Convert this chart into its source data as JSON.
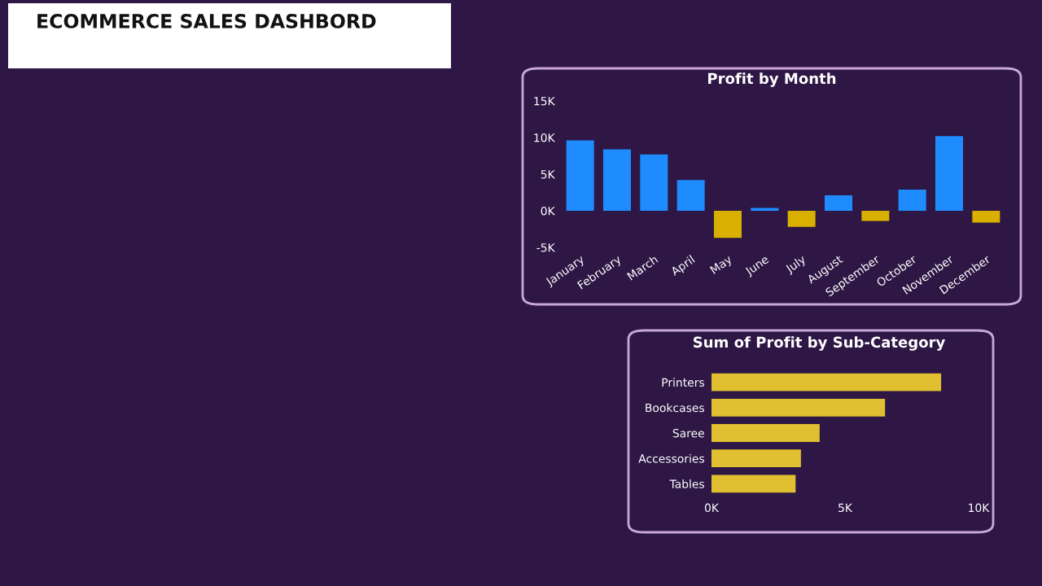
{
  "chart_data": [
    {
      "type": "other",
      "title": "ECOMMERCE SALES DASHBORD"
    },
    {
      "type": "bar",
      "title": "Profit by Month",
      "categories": [
        "January",
        "February",
        "March",
        "April",
        "May",
        "June",
        "July",
        "August",
        "September",
        "October",
        "November",
        "December"
      ],
      "values": [
        9600,
        8400,
        7700,
        4200,
        -3700,
        400,
        -2200,
        2100,
        -1400,
        2900,
        10200,
        -1600
      ],
      "colors": [
        "#1e8cff",
        "#1e8cff",
        "#1e8cff",
        "#1e8cff",
        "#d9b000",
        "#1e8cff",
        "#d9b000",
        "#1e8cff",
        "#d9b000",
        "#1e8cff",
        "#1e8cff",
        "#d9b000"
      ],
      "ylim": [
        -5000,
        15000
      ],
      "yticks": [
        {
          "value": -5000,
          "label": "-5K"
        },
        {
          "value": 0,
          "label": "0K"
        },
        {
          "value": 5000,
          "label": "5K"
        },
        {
          "value": 10000,
          "label": "10K"
        },
        {
          "value": 15000,
          "label": "15K"
        }
      ],
      "grid": false,
      "legend": false
    },
    {
      "type": "bar",
      "orientation": "horizontal",
      "title": "Sum of Profit by Sub-Category",
      "categories": [
        "Printers",
        "Bookcases",
        "Saree",
        "Accessories",
        "Tables"
      ],
      "values": [
        8600,
        6500,
        4050,
        3350,
        3150
      ],
      "color": "#e0c030",
      "xlim": [
        0,
        10000
      ],
      "xticks": [
        {
          "value": 0,
          "label": "0K"
        },
        {
          "value": 5000,
          "label": "5K"
        },
        {
          "value": 10000,
          "label": "10K"
        }
      ],
      "grid": false,
      "legend": false
    }
  ]
}
